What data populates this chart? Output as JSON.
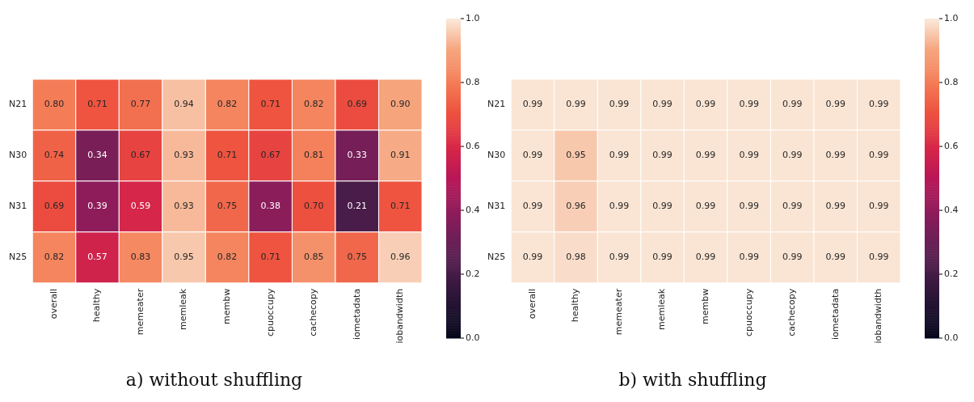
{
  "chart_data": [
    {
      "type": "heatmap",
      "title": "a) without shuffling",
      "categories": [
        "overall",
        "healthy",
        "memeater",
        "memleak",
        "membw",
        "cpuoccupy",
        "cachecopy",
        "iometadata",
        "iobandwidth"
      ],
      "y_categories": [
        "N21",
        "N30",
        "N31",
        "N25"
      ],
      "cells": [
        [
          0.8,
          0.71,
          0.77,
          0.94,
          0.82,
          0.71,
          0.82,
          0.69,
          0.9
        ],
        [
          0.74,
          0.34,
          0.67,
          0.93,
          0.71,
          0.67,
          0.81,
          0.33,
          0.91
        ],
        [
          0.69,
          0.39,
          0.59,
          0.93,
          0.75,
          0.38,
          0.7,
          0.21,
          0.71
        ],
        [
          0.82,
          0.57,
          0.83,
          0.95,
          0.82,
          0.71,
          0.85,
          0.75,
          0.96
        ]
      ],
      "cell_labels": [
        [
          "0.80",
          "0.71",
          "0.77",
          "0.94",
          "0.82",
          "0.71",
          "0.82",
          "0.69",
          "0.90"
        ],
        [
          "0.74",
          "0.34",
          "0.67",
          "0.93",
          "0.71",
          "0.67",
          "0.81",
          "0.33",
          "0.91"
        ],
        [
          "0.69",
          "0.39",
          "0.59",
          "0.93",
          "0.75",
          "0.38",
          "0.70",
          "0.21",
          "0.71"
        ],
        [
          "0.82",
          "0.57",
          "0.83",
          "0.95",
          "0.82",
          "0.71",
          "0.85",
          "0.75",
          "0.96"
        ]
      ],
      "clim": [
        0,
        1
      ],
      "cticks": [
        {
          "value": 0,
          "label": "0.0"
        },
        {
          "value": 0.2,
          "label": "0.2"
        },
        {
          "value": 0.4,
          "label": "0.4"
        },
        {
          "value": 0.6,
          "label": "0.6"
        },
        {
          "value": 0.8,
          "label": "0.8"
        },
        {
          "value": 1,
          "label": "1.0"
        }
      ]
    },
    {
      "type": "heatmap",
      "title": "b) with shuffling",
      "categories": [
        "overall",
        "healthy",
        "memeater",
        "memleak",
        "membw",
        "cpuoccupy",
        "cachecopy",
        "iometadata",
        "iobandwidth"
      ],
      "y_categories": [
        "N21",
        "N30",
        "N31",
        "N25"
      ],
      "cells": [
        [
          0.99,
          0.99,
          0.99,
          0.99,
          0.99,
          0.99,
          0.99,
          0.99,
          0.99
        ],
        [
          0.99,
          0.95,
          0.99,
          0.99,
          0.99,
          0.99,
          0.99,
          0.99,
          0.99
        ],
        [
          0.99,
          0.96,
          0.99,
          0.99,
          0.99,
          0.99,
          0.99,
          0.99,
          0.99
        ],
        [
          0.99,
          0.98,
          0.99,
          0.99,
          0.99,
          0.99,
          0.99,
          0.99,
          0.99
        ]
      ],
      "cell_labels": [
        [
          "0.99",
          "0.99",
          "0.99",
          "0.99",
          "0.99",
          "0.99",
          "0.99",
          "0.99",
          "0.99"
        ],
        [
          "0.99",
          "0.95",
          "0.99",
          "0.99",
          "0.99",
          "0.99",
          "0.99",
          "0.99",
          "0.99"
        ],
        [
          "0.99",
          "0.96",
          "0.99",
          "0.99",
          "0.99",
          "0.99",
          "0.99",
          "0.99",
          "0.99"
        ],
        [
          "0.99",
          "0.98",
          "0.99",
          "0.99",
          "0.99",
          "0.99",
          "0.99",
          "0.99",
          "0.99"
        ]
      ],
      "clim": [
        0,
        1
      ],
      "cticks": [
        {
          "value": 0,
          "label": "0.0"
        },
        {
          "value": 0.2,
          "label": "0.2"
        },
        {
          "value": 0.4,
          "label": "0.4"
        },
        {
          "value": 0.6,
          "label": "0.6"
        },
        {
          "value": 0.8,
          "label": "0.8"
        },
        {
          "value": 1,
          "label": "1.0"
        }
      ]
    }
  ]
}
